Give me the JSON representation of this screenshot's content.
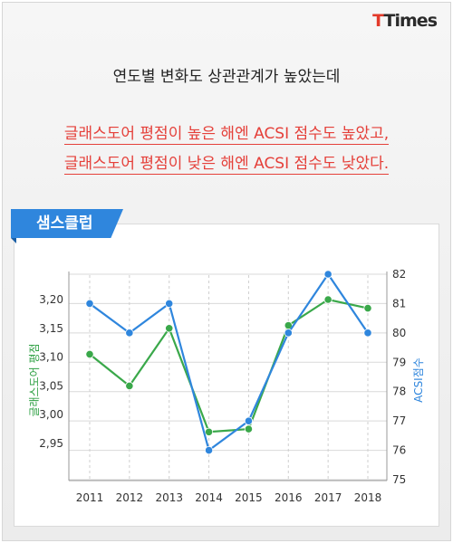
{
  "logo": {
    "prefix": "T",
    "main": "Times"
  },
  "headline": "연도별 변화도 상관관계가 높았는데",
  "highlight_lines": [
    "글래스도어 평점이 높은 해엔 ACSI 점수도 높았고,",
    "글래스도어 평점이 낮은 해엔 ACSI 점수도 낮았다."
  ],
  "tag_label": "샘스클럽",
  "chart_data": {
    "type": "line",
    "categories": [
      "2011",
      "2012",
      "2013",
      "2014",
      "2015",
      "2016",
      "2017",
      "2018"
    ],
    "series": [
      {
        "name": "글래스도어 평점",
        "axis": "left",
        "color": "#3aa84a",
        "values": [
          3.105,
          3.05,
          3.15,
          2.97,
          2.975,
          3.155,
          3.2,
          3.185
        ]
      },
      {
        "name": "ACSI점수",
        "axis": "right",
        "color": "#2f86dd",
        "values": [
          81,
          80,
          81,
          76,
          77,
          80,
          82,
          80
        ]
      }
    ],
    "y_left": {
      "label": "글래스도어 평점",
      "ticks": [
        "2,95",
        "3,00",
        "3,05",
        "3,10",
        "3,15",
        "3,20"
      ],
      "range": [
        2.9,
        3.25
      ]
    },
    "y_right": {
      "label": "ACSI점수",
      "ticks": [
        "75",
        "76",
        "77",
        "78",
        "79",
        "80",
        "81",
        "82"
      ],
      "range": [
        75,
        82
      ]
    },
    "grid": true
  }
}
